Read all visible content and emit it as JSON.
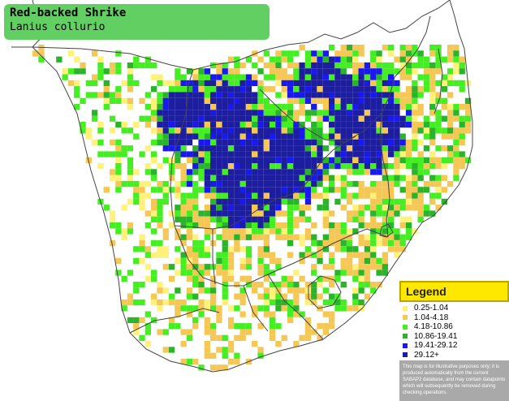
{
  "title": {
    "common_name": "Red-backed Shrike",
    "scientific_name": "Lanius collurio"
  },
  "legend": {
    "heading": "Legend",
    "items": [
      {
        "label": "0.25-1.04",
        "color": "#fff17a"
      },
      {
        "label": "1.04-4.18",
        "color": "#f5c755"
      },
      {
        "label": "4.18-10.86",
        "color": "#44ee22"
      },
      {
        "label": "10.86-19.41",
        "color": "#2cb32c"
      },
      {
        "label": "19.41-29.12",
        "color": "#1919ee"
      },
      {
        "label": "29.12+",
        "color": "#1d1da0"
      }
    ],
    "note": "This map is for illustrative purposes only; it is produced automatically from the current SABAP2 database, and may contain datapoints which will subsequently be removed during checking operations."
  },
  "map": {
    "region": "Southern Africa",
    "boundary_color": "#444444"
  }
}
